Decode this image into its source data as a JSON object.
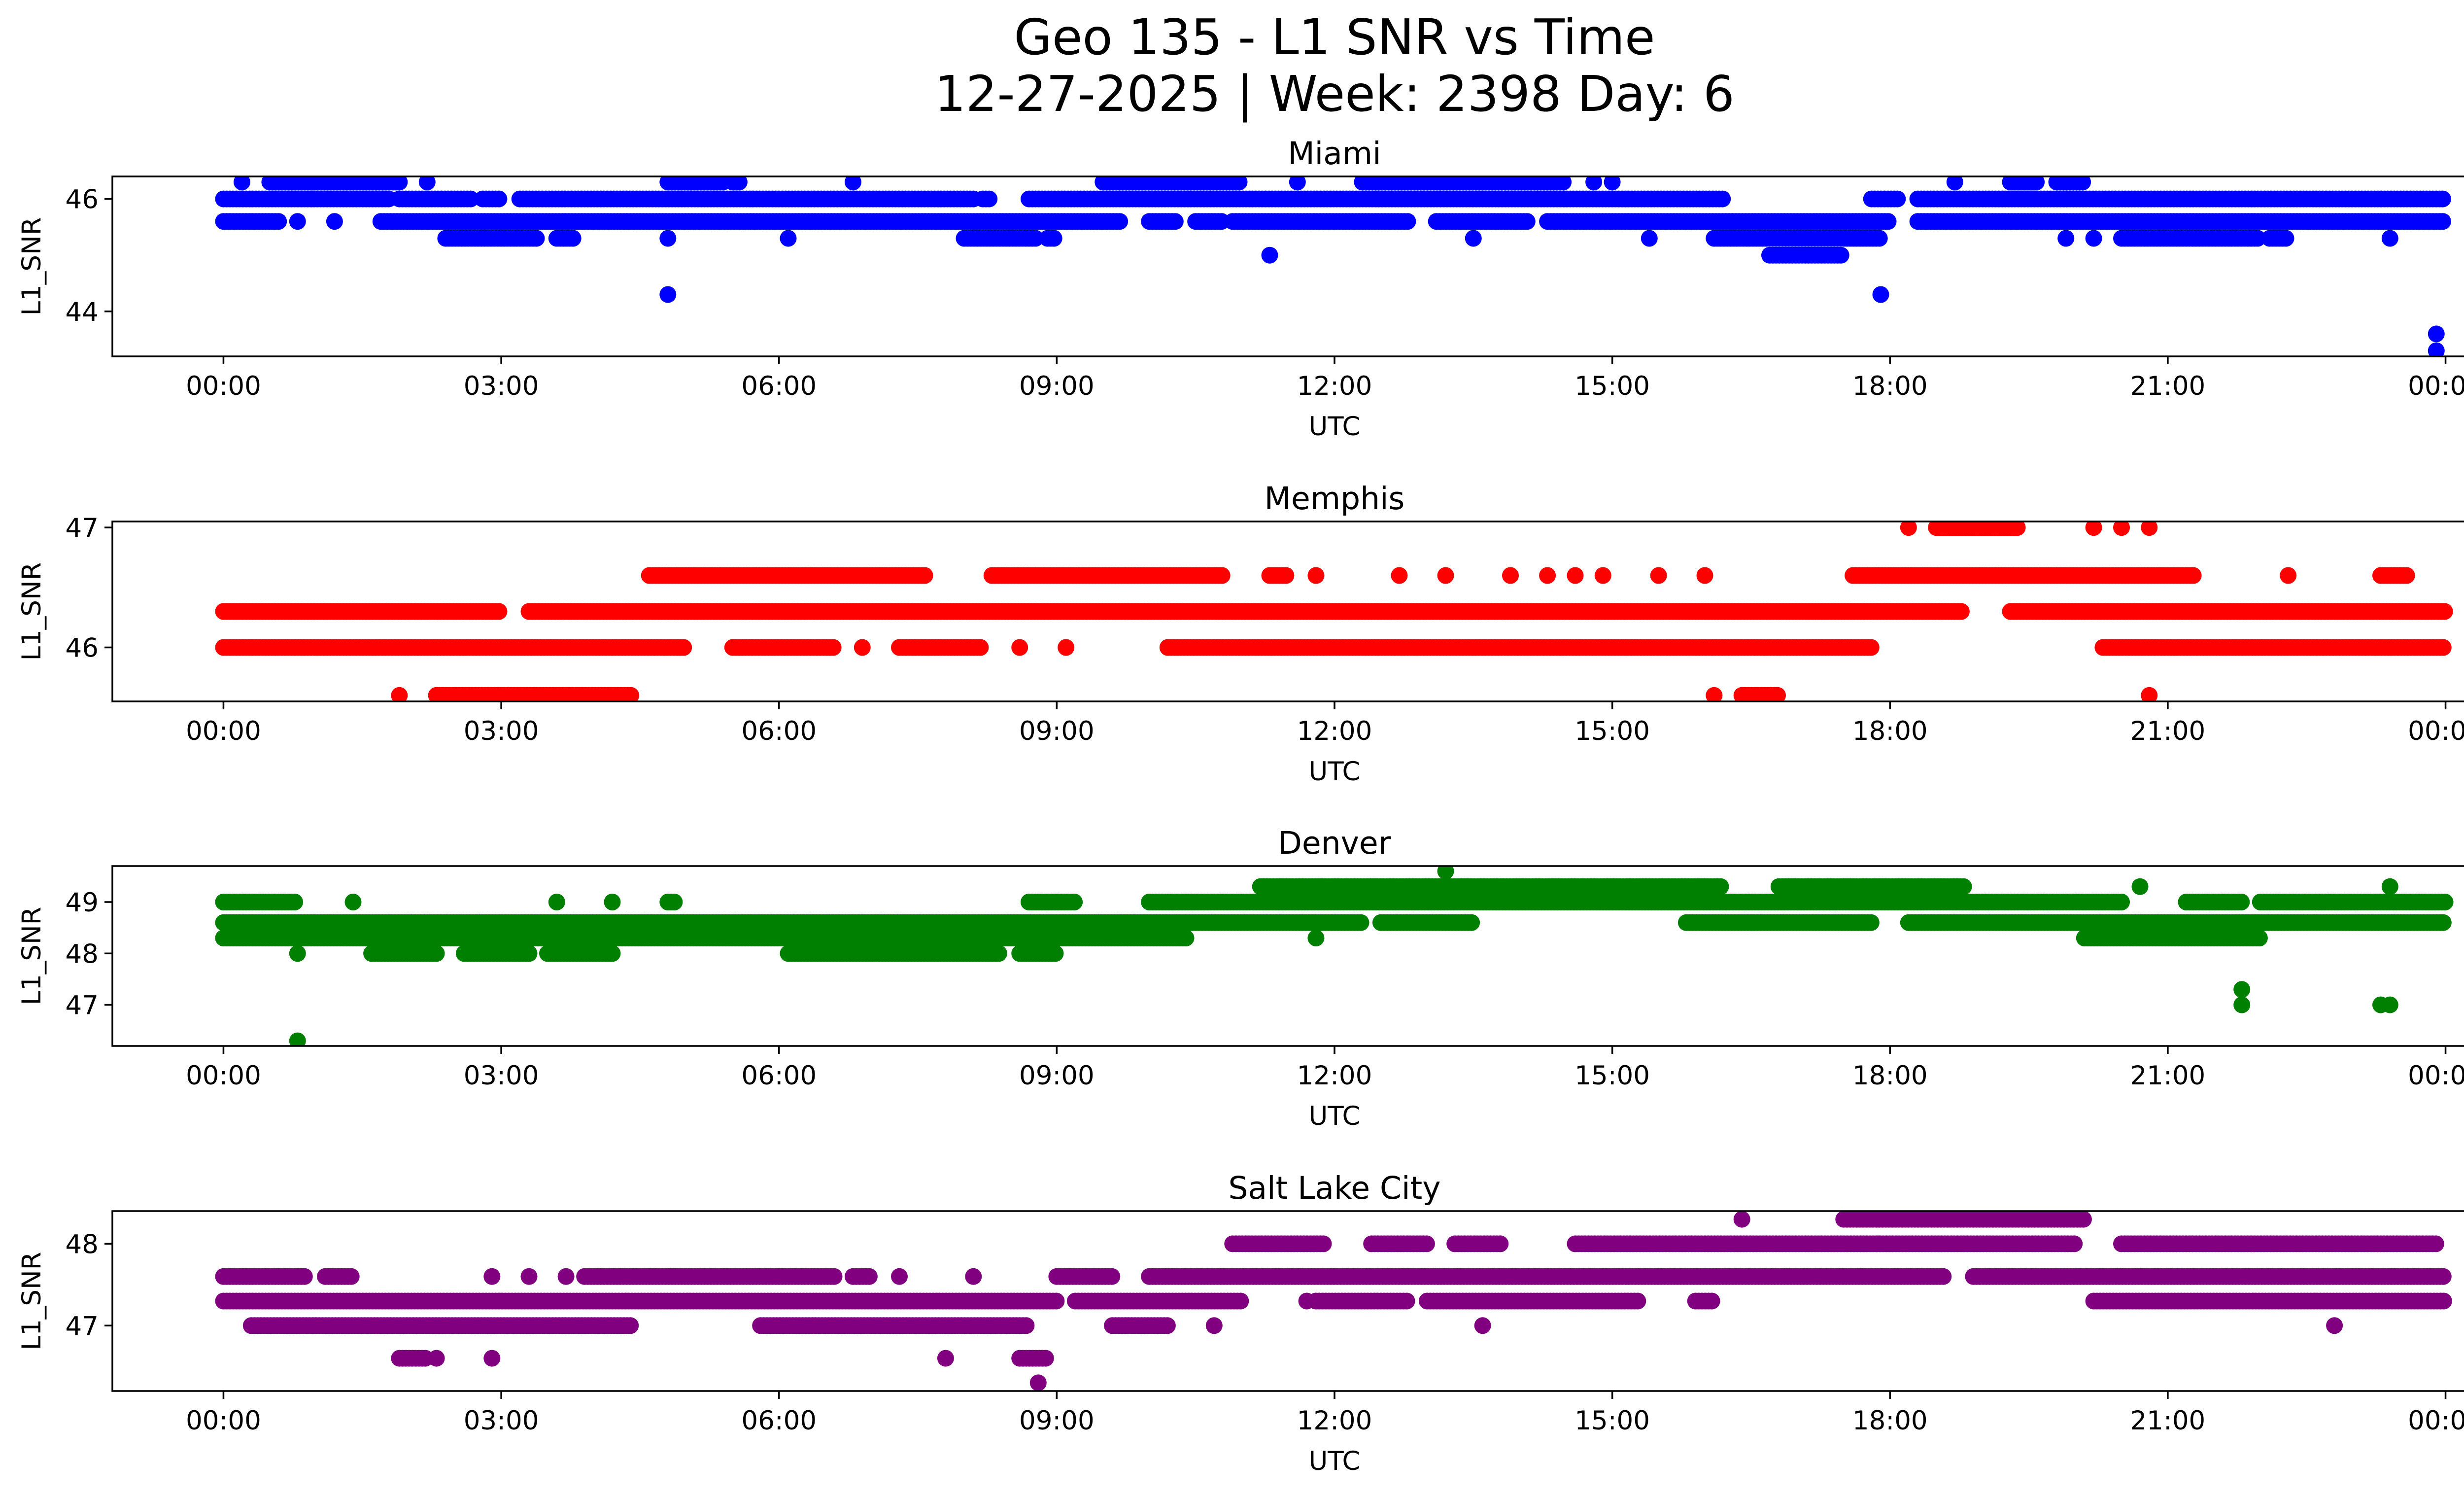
{
  "chart_data": {
    "type": "scatter",
    "title_line1": "Geo 135 - L1 SNR vs Time",
    "title_line2": "12-27-2025 | Week: 2398 Day: 6",
    "xlabel": "UTC",
    "ylabel": "L1_SNR",
    "x_unit": "hours UTC",
    "xlim": [
      -1.2,
      25.2
    ],
    "xticks": [
      0,
      3,
      6,
      9,
      12,
      15,
      18,
      21,
      24
    ],
    "xtick_labels": [
      "00:00",
      "03:00",
      "06:00",
      "09:00",
      "12:00",
      "15:00",
      "18:00",
      "21:00",
      "00:00"
    ],
    "subplots": [
      {
        "title": "Miami",
        "color": "#0000ff",
        "ylim": [
          43.2,
          46.4
        ],
        "yticks": [
          44,
          46
        ],
        "ytick_labels": [
          "44",
          "46"
        ],
        "bands": [
          {
            "y": 46.0,
            "segments": [
              [
                0.0,
                1.8
              ],
              [
                1.9,
                2.7
              ],
              [
                2.8,
                3.0
              ],
              [
                3.2,
                8.1
              ],
              [
                8.2,
                8.3
              ],
              [
                8.7,
                16.2
              ],
              [
                17.8,
                18.1
              ],
              [
                18.3,
                24.0
              ]
            ]
          },
          {
            "y": 45.6,
            "segments": [
              [
                0.0,
                0.6
              ],
              [
                1.7,
                9.7
              ],
              [
                10.0,
                10.3
              ],
              [
                10.5,
                10.8
              ],
              [
                10.9,
                12.8
              ],
              [
                13.1,
                14.1
              ],
              [
                14.3,
                16.3
              ],
              [
                16.3,
                18.0
              ],
              [
                18.3,
                24.0
              ]
            ]
          },
          {
            "y": 45.3,
            "segments": [
              [
                2.4,
                3.4
              ],
              [
                3.6,
                3.8
              ],
              [
                8.0,
                8.8
              ],
              [
                8.9,
                9.0
              ],
              [
                16.1,
                17.9
              ],
              [
                20.5,
                22.0
              ],
              [
                22.1,
                22.3
              ]
            ]
          },
          {
            "y": 46.3,
            "segments": [
              [
                0.5,
                1.9
              ],
              [
                4.8,
                5.4
              ],
              [
                5.5,
                5.6
              ],
              [
                9.5,
                11.0
              ],
              [
                12.3,
                14.5
              ],
              [
                19.3,
                19.6
              ],
              [
                19.8,
                20.1
              ]
            ]
          },
          {
            "y": 45.0,
            "segments": [
              [
                16.7,
                17.5
              ]
            ]
          }
        ],
        "points": [
          [
            0.2,
            46.3
          ],
          [
            2.2,
            46.3
          ],
          [
            6.8,
            46.3
          ],
          [
            11.6,
            46.3
          ],
          [
            14.8,
            46.3
          ],
          [
            15.0,
            46.3
          ],
          [
            18.7,
            46.3
          ],
          [
            0.8,
            45.6
          ],
          [
            1.2,
            45.6
          ],
          [
            4.8,
            45.3
          ],
          [
            6.1,
            45.3
          ],
          [
            13.5,
            45.3
          ],
          [
            15.4,
            45.3
          ],
          [
            19.9,
            45.3
          ],
          [
            20.2,
            45.3
          ],
          [
            23.4,
            45.3
          ],
          [
            11.3,
            45.0
          ],
          [
            4.8,
            44.3
          ],
          [
            17.9,
            44.3
          ],
          [
            23.9,
            43.6
          ],
          [
            23.9,
            43.3
          ]
        ]
      },
      {
        "title": "Memphis",
        "color": "#ff0000",
        "ylim": [
          45.55,
          47.05
        ],
        "yticks": [
          46,
          47
        ],
        "ytick_labels": [
          "46",
          "47"
        ],
        "bands": [
          {
            "y": 46.3,
            "segments": [
              [
                0.0,
                3.0
              ],
              [
                3.3,
                18.8
              ],
              [
                19.3,
                24.0
              ]
            ]
          },
          {
            "y": 46.0,
            "segments": [
              [
                0.0,
                5.0
              ],
              [
                5.5,
                6.6
              ],
              [
                7.3,
                8.2
              ],
              [
                10.2,
                17.8
              ],
              [
                20.3,
                24.0
              ]
            ]
          },
          {
            "y": 46.6,
            "segments": [
              [
                4.6,
                7.6
              ],
              [
                8.3,
                10.8
              ],
              [
                11.3,
                11.5
              ],
              [
                17.6,
                21.3
              ],
              [
                23.3,
                23.6
              ]
            ]
          },
          {
            "y": 45.6,
            "segments": [
              [
                2.3,
                4.4
              ],
              [
                16.4,
                16.8
              ]
            ]
          },
          {
            "y": 47.0,
            "segments": [
              [
                18.5,
                19.4
              ]
            ]
          }
        ],
        "points": [
          [
            6.9,
            46.0
          ],
          [
            9.1,
            46.0
          ],
          [
            8.6,
            46.0
          ],
          [
            1.9,
            45.6
          ],
          [
            16.1,
            45.6
          ],
          [
            20.8,
            45.6
          ],
          [
            11.8,
            46.6
          ],
          [
            12.7,
            46.6
          ],
          [
            13.2,
            46.6
          ],
          [
            13.9,
            46.6
          ],
          [
            14.3,
            46.6
          ],
          [
            14.6,
            46.6
          ],
          [
            14.9,
            46.6
          ],
          [
            15.5,
            46.6
          ],
          [
            16.0,
            46.6
          ],
          [
            22.3,
            46.6
          ],
          [
            18.2,
            47.0
          ],
          [
            20.2,
            47.0
          ],
          [
            20.5,
            47.0
          ],
          [
            20.8,
            47.0
          ]
        ]
      },
      {
        "title": "Denver",
        "color": "#008000",
        "ylim": [
          46.2,
          49.7
        ],
        "yticks": [
          47,
          48,
          49
        ],
        "ytick_labels": [
          "47",
          "48",
          "49"
        ],
        "bands": [
          {
            "y": 48.6,
            "segments": [
              [
                0.0,
                12.3
              ],
              [
                12.5,
                13.5
              ],
              [
                15.8,
                17.8
              ],
              [
                18.2,
                24.0
              ]
            ]
          },
          {
            "y": 48.3,
            "segments": [
              [
                0.0,
                10.4
              ],
              [
                20.1,
                22.0
              ]
            ]
          },
          {
            "y": 49.0,
            "segments": [
              [
                0.0,
                0.8
              ],
              [
                4.8,
                4.9
              ],
              [
                8.7,
                9.2
              ],
              [
                10.0,
                20.5
              ],
              [
                21.2,
                21.8
              ],
              [
                22.0,
                24.0
              ]
            ]
          },
          {
            "y": 49.3,
            "segments": [
              [
                11.2,
                16.2
              ],
              [
                16.8,
                18.8
              ]
            ]
          },
          {
            "y": 48.0,
            "segments": [
              [
                1.6,
                2.3
              ],
              [
                2.6,
                3.3
              ],
              [
                3.5,
                4.2
              ],
              [
                6.1,
                8.4
              ],
              [
                8.6,
                9.0
              ]
            ]
          }
        ],
        "points": [
          [
            1.4,
            49.0
          ],
          [
            3.6,
            49.0
          ],
          [
            4.2,
            49.0
          ],
          [
            0.8,
            48.0
          ],
          [
            11.8,
            48.3
          ],
          [
            13.2,
            49.6
          ],
          [
            20.7,
            49.3
          ],
          [
            23.4,
            49.3
          ],
          [
            21.8,
            47.3
          ],
          [
            21.8,
            47.0
          ],
          [
            23.3,
            47.0
          ],
          [
            23.4,
            47.0
          ],
          [
            0.8,
            46.3
          ]
        ]
      },
      {
        "title": "Salt Lake City",
        "color": "#800080",
        "ylim": [
          46.2,
          48.4
        ],
        "yticks": [
          47,
          48
        ],
        "ytick_labels": [
          "47",
          "48"
        ],
        "bands": [
          {
            "y": 47.3,
            "segments": [
              [
                0.0,
                9.0
              ],
              [
                9.2,
                11.0
              ],
              [
                11.8,
                12.8
              ],
              [
                13.0,
                15.3
              ],
              [
                15.9,
                16.1
              ],
              [
                20.2,
                24.0
              ]
            ]
          },
          {
            "y": 47.6,
            "segments": [
              [
                0.0,
                0.9
              ],
              [
                1.1,
                1.4
              ],
              [
                3.9,
                6.6
              ],
              [
                6.8,
                7.0
              ],
              [
                9.0,
                9.6
              ],
              [
                10.0,
                18.6
              ],
              [
                18.9,
                24.0
              ]
            ]
          },
          {
            "y": 47.0,
            "segments": [
              [
                0.3,
                4.4
              ],
              [
                5.8,
                8.7
              ],
              [
                9.6,
                10.2
              ]
            ]
          },
          {
            "y": 48.0,
            "segments": [
              [
                10.9,
                11.9
              ],
              [
                12.4,
                13.0
              ],
              [
                13.3,
                13.8
              ],
              [
                14.6,
                20.0
              ],
              [
                20.5,
                23.9
              ]
            ]
          },
          {
            "y": 48.3,
            "segments": [
              [
                17.5,
                20.1
              ]
            ]
          },
          {
            "y": 46.6,
            "segments": [
              [
                1.9,
                2.2
              ],
              [
                8.6,
                8.9
              ]
            ]
          }
        ],
        "points": [
          [
            2.9,
            47.6
          ],
          [
            3.3,
            47.6
          ],
          [
            3.7,
            47.6
          ],
          [
            7.3,
            47.6
          ],
          [
            8.1,
            47.6
          ],
          [
            10.7,
            47.0
          ],
          [
            13.6,
            47.0
          ],
          [
            22.8,
            47.0
          ],
          [
            2.3,
            46.6
          ],
          [
            2.9,
            46.6
          ],
          [
            7.8,
            46.6
          ],
          [
            8.8,
            46.3
          ],
          [
            16.4,
            48.3
          ],
          [
            11.7,
            47.3
          ]
        ]
      }
    ]
  }
}
